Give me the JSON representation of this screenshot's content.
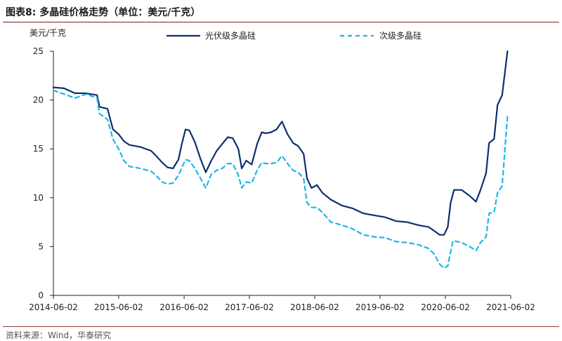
{
  "figure": {
    "title": "图表8:   多晶硅价格走势（单位：美元/千克）",
    "source": "资料来源：Wind，华泰研究"
  },
  "colors": {
    "series_solid": "#0d2f6e",
    "series_dashed": "#1fb6e6",
    "axis": "#222222",
    "rule": "#8a1a1a"
  },
  "chart_data": {
    "type": "line",
    "ylabel": "美元/千克",
    "xlabel": "",
    "ylim": [
      0,
      25
    ],
    "yticks": [
      0,
      5,
      10,
      15,
      20,
      25
    ],
    "xlim": [
      "2014-06-02",
      "2021-06-02"
    ],
    "xticks": [
      "2014-06-02",
      "2015-06-02",
      "2016-06-02",
      "2017-06-02",
      "2018-06-02",
      "2019-06-02",
      "2020-06-02",
      "2021-06-02"
    ],
    "grid": false,
    "legend_position": "top-center",
    "series": [
      {
        "name": "光伏级多晶硅",
        "style": "solid",
        "points": [
          [
            "2014-06-02",
            21.3
          ],
          [
            "2014-08-01",
            21.2
          ],
          [
            "2014-10-01",
            20.7
          ],
          [
            "2014-12-01",
            20.7
          ],
          [
            "2015-02-01",
            20.5
          ],
          [
            "2015-02-15",
            19.3
          ],
          [
            "2015-04-01",
            19.1
          ],
          [
            "2015-05-01",
            17.0
          ],
          [
            "2015-06-02",
            16.5
          ],
          [
            "2015-07-01",
            15.8
          ],
          [
            "2015-08-01",
            15.4
          ],
          [
            "2015-10-01",
            15.2
          ],
          [
            "2015-12-01",
            14.8
          ],
          [
            "2016-01-01",
            14.2
          ],
          [
            "2016-02-01",
            13.6
          ],
          [
            "2016-03-01",
            13.1
          ],
          [
            "2016-04-01",
            13.0
          ],
          [
            "2016-05-01",
            13.9
          ],
          [
            "2016-05-20",
            15.5
          ],
          [
            "2016-06-10",
            17.0
          ],
          [
            "2016-07-01",
            16.9
          ],
          [
            "2016-08-01",
            15.7
          ],
          [
            "2016-09-01",
            14.0
          ],
          [
            "2016-10-01",
            12.6
          ],
          [
            "2016-11-01",
            13.8
          ],
          [
            "2016-12-01",
            14.8
          ],
          [
            "2017-01-01",
            15.5
          ],
          [
            "2017-02-01",
            16.2
          ],
          [
            "2017-03-01",
            16.1
          ],
          [
            "2017-04-01",
            15.0
          ],
          [
            "2017-04-20",
            13.0
          ],
          [
            "2017-05-15",
            13.8
          ],
          [
            "2017-06-15",
            13.4
          ],
          [
            "2017-07-15",
            15.5
          ],
          [
            "2017-08-10",
            16.7
          ],
          [
            "2017-09-01",
            16.6
          ],
          [
            "2017-10-01",
            16.7
          ],
          [
            "2017-11-01",
            17.0
          ],
          [
            "2017-12-01",
            17.8
          ],
          [
            "2018-01-01",
            16.5
          ],
          [
            "2018-02-01",
            15.6
          ],
          [
            "2018-03-01",
            15.3
          ],
          [
            "2018-04-01",
            14.5
          ],
          [
            "2018-04-20",
            12.0
          ],
          [
            "2018-05-15",
            11.0
          ],
          [
            "2018-06-15",
            11.3
          ],
          [
            "2018-07-15",
            10.5
          ],
          [
            "2018-09-01",
            9.8
          ],
          [
            "2018-11-01",
            9.2
          ],
          [
            "2019-01-01",
            8.9
          ],
          [
            "2019-03-01",
            8.4
          ],
          [
            "2019-05-01",
            8.2
          ],
          [
            "2019-07-01",
            8.0
          ],
          [
            "2019-09-01",
            7.6
          ],
          [
            "2019-11-01",
            7.5
          ],
          [
            "2020-01-01",
            7.2
          ],
          [
            "2020-03-01",
            7.0
          ],
          [
            "2020-04-01",
            6.6
          ],
          [
            "2020-05-01",
            6.2
          ],
          [
            "2020-05-25",
            6.2
          ],
          [
            "2020-06-15",
            7.0
          ],
          [
            "2020-07-01",
            9.5
          ],
          [
            "2020-07-20",
            10.8
          ],
          [
            "2020-09-01",
            10.8
          ],
          [
            "2020-10-15",
            10.2
          ],
          [
            "2020-11-20",
            9.6
          ],
          [
            "2020-12-15",
            10.8
          ],
          [
            "2021-01-15",
            12.5
          ],
          [
            "2021-02-01",
            15.6
          ],
          [
            "2021-03-01",
            16.0
          ],
          [
            "2021-03-20",
            19.5
          ],
          [
            "2021-04-15",
            20.5
          ],
          [
            "2021-05-15",
            25.0
          ]
        ]
      },
      {
        "name": "次级多晶硅",
        "style": "dashed",
        "points": [
          [
            "2014-06-02",
            21.0
          ],
          [
            "2014-08-01",
            20.6
          ],
          [
            "2014-10-01",
            20.2
          ],
          [
            "2014-12-01",
            20.6
          ],
          [
            "2015-02-01",
            20.2
          ],
          [
            "2015-02-15",
            18.6
          ],
          [
            "2015-04-01",
            18.0
          ],
          [
            "2015-05-01",
            16.0
          ],
          [
            "2015-06-02",
            15.0
          ],
          [
            "2015-07-01",
            13.8
          ],
          [
            "2015-08-01",
            13.2
          ],
          [
            "2015-10-01",
            13.0
          ],
          [
            "2015-12-01",
            12.7
          ],
          [
            "2016-01-01",
            12.2
          ],
          [
            "2016-02-01",
            11.6
          ],
          [
            "2016-03-01",
            11.4
          ],
          [
            "2016-04-01",
            11.5
          ],
          [
            "2016-05-01",
            12.3
          ],
          [
            "2016-06-10",
            13.9
          ],
          [
            "2016-07-01",
            13.8
          ],
          [
            "2016-08-01",
            13.0
          ],
          [
            "2016-09-01",
            12.0
          ],
          [
            "2016-10-01",
            11.0
          ],
          [
            "2016-11-01",
            12.4
          ],
          [
            "2016-12-01",
            12.8
          ],
          [
            "2017-01-01",
            13.0
          ],
          [
            "2017-02-01",
            13.5
          ],
          [
            "2017-03-01",
            13.5
          ],
          [
            "2017-04-01",
            12.3
          ],
          [
            "2017-04-20",
            11.0
          ],
          [
            "2017-05-15",
            11.6
          ],
          [
            "2017-06-15",
            11.5
          ],
          [
            "2017-07-15",
            12.8
          ],
          [
            "2017-08-10",
            13.6
          ],
          [
            "2017-09-01",
            13.5
          ],
          [
            "2017-10-01",
            13.5
          ],
          [
            "2017-11-01",
            13.6
          ],
          [
            "2017-12-01",
            14.3
          ],
          [
            "2018-01-01",
            13.5
          ],
          [
            "2018-02-01",
            12.8
          ],
          [
            "2018-03-01",
            12.6
          ],
          [
            "2018-04-01",
            12.0
          ],
          [
            "2018-04-20",
            9.5
          ],
          [
            "2018-05-15",
            9.0
          ],
          [
            "2018-06-15",
            9.0
          ],
          [
            "2018-07-15",
            8.5
          ],
          [
            "2018-09-01",
            7.5
          ],
          [
            "2018-11-01",
            7.2
          ],
          [
            "2019-01-01",
            6.8
          ],
          [
            "2019-03-01",
            6.2
          ],
          [
            "2019-05-01",
            6.0
          ],
          [
            "2019-07-01",
            5.9
          ],
          [
            "2019-09-01",
            5.5
          ],
          [
            "2019-11-01",
            5.4
          ],
          [
            "2020-01-01",
            5.2
          ],
          [
            "2020-03-01",
            4.8
          ],
          [
            "2020-04-01",
            4.2
          ],
          [
            "2020-05-01",
            3.2
          ],
          [
            "2020-05-25",
            2.8
          ],
          [
            "2020-06-15",
            3.0
          ],
          [
            "2020-07-01",
            4.5
          ],
          [
            "2020-07-15",
            5.6
          ],
          [
            "2020-09-01",
            5.4
          ],
          [
            "2020-10-15",
            5.0
          ],
          [
            "2020-11-20",
            4.6
          ],
          [
            "2020-12-15",
            5.4
          ],
          [
            "2021-01-15",
            6.0
          ],
          [
            "2021-02-01",
            8.4
          ],
          [
            "2021-03-01",
            8.5
          ],
          [
            "2021-03-20",
            10.5
          ],
          [
            "2021-04-15",
            11.2
          ],
          [
            "2021-05-15",
            18.4
          ]
        ]
      }
    ]
  }
}
